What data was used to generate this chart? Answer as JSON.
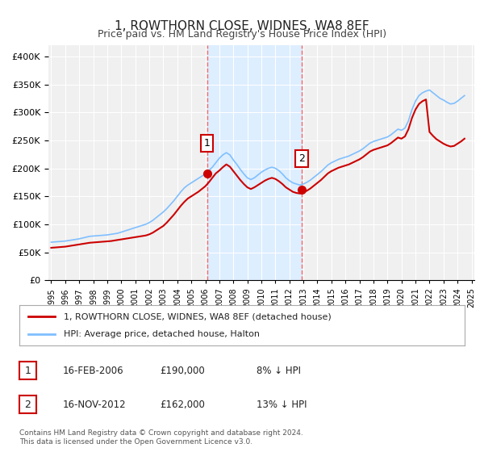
{
  "title": "1, ROWTHORN CLOSE, WIDNES, WA8 8EF",
  "subtitle": "Price paid vs. HM Land Registry's House Price Index (HPI)",
  "title_fontsize": 11,
  "subtitle_fontsize": 9,
  "background_color": "#ffffff",
  "plot_background_color": "#f0f0f0",
  "shaded_region_color": "#ddeeff",
  "hpi_line_color": "#7fbfff",
  "price_line_color": "#cc0000",
  "marker_color": "#cc0000",
  "vline_color": "#ff6666",
  "grid_color": "#ffffff",
  "ylim": [
    0,
    420000
  ],
  "ytick_step": 50000,
  "sale1_x": 2006.12,
  "sale1_y": 190000,
  "sale2_x": 2012.88,
  "sale2_y": 162000,
  "sale1_label": "1",
  "sale2_label": "2",
  "legend_line1": "1, ROWTHORN CLOSE, WIDNES, WA8 8EF (detached house)",
  "legend_line2": "HPI: Average price, detached house, Halton",
  "table_row1_num": "1",
  "table_row1_date": "16-FEB-2006",
  "table_row1_price": "£190,000",
  "table_row1_hpi": "8% ↓ HPI",
  "table_row2_num": "2",
  "table_row2_date": "16-NOV-2012",
  "table_row2_price": "£162,000",
  "table_row2_hpi": "13% ↓ HPI",
  "footer": "Contains HM Land Registry data © Crown copyright and database right 2024.\nThis data is licensed under the Open Government Licence v3.0.",
  "hpi_data_x": [
    1995,
    1995.25,
    1995.5,
    1995.75,
    1996,
    1996.25,
    1996.5,
    1996.75,
    1997,
    1997.25,
    1997.5,
    1997.75,
    1998,
    1998.25,
    1998.5,
    1998.75,
    1999,
    1999.25,
    1999.5,
    1999.75,
    2000,
    2000.25,
    2000.5,
    2000.75,
    2001,
    2001.25,
    2001.5,
    2001.75,
    2002,
    2002.25,
    2002.5,
    2002.75,
    2003,
    2003.25,
    2003.5,
    2003.75,
    2004,
    2004.25,
    2004.5,
    2004.75,
    2005,
    2005.25,
    2005.5,
    2005.75,
    2006,
    2006.25,
    2006.5,
    2006.75,
    2007,
    2007.25,
    2007.5,
    2007.75,
    2008,
    2008.25,
    2008.5,
    2008.75,
    2009,
    2009.25,
    2009.5,
    2009.75,
    2010,
    2010.25,
    2010.5,
    2010.75,
    2011,
    2011.25,
    2011.5,
    2011.75,
    2012,
    2012.25,
    2012.5,
    2012.75,
    2013,
    2013.25,
    2013.5,
    2013.75,
    2014,
    2014.25,
    2014.5,
    2014.75,
    2015,
    2015.25,
    2015.5,
    2015.75,
    2016,
    2016.25,
    2016.5,
    2016.75,
    2017,
    2017.25,
    2017.5,
    2017.75,
    2018,
    2018.25,
    2018.5,
    2018.75,
    2019,
    2019.25,
    2019.5,
    2019.75,
    2020,
    2020.25,
    2020.5,
    2020.75,
    2021,
    2021.25,
    2021.5,
    2021.75,
    2022,
    2022.25,
    2022.5,
    2022.75,
    2023,
    2023.25,
    2023.5,
    2023.75,
    2024,
    2024.25,
    2024.5
  ],
  "hpi_data_y": [
    68000,
    68500,
    69000,
    69500,
    70000,
    71000,
    72000,
    73000,
    74000,
    75500,
    77000,
    78500,
    79000,
    79500,
    80000,
    80500,
    81000,
    82000,
    83000,
    84000,
    86000,
    88000,
    90000,
    92000,
    94000,
    96000,
    98000,
    100000,
    103000,
    107000,
    112000,
    117000,
    122000,
    128000,
    135000,
    142000,
    150000,
    158000,
    165000,
    170000,
    174000,
    178000,
    182000,
    186000,
    190000,
    196000,
    202000,
    210000,
    218000,
    224000,
    228000,
    224000,
    215000,
    207000,
    198000,
    190000,
    183000,
    180000,
    183000,
    188000,
    193000,
    197000,
    200000,
    202000,
    200000,
    196000,
    190000,
    183000,
    178000,
    174000,
    172000,
    170000,
    172000,
    175000,
    179000,
    184000,
    189000,
    194000,
    200000,
    206000,
    210000,
    213000,
    216000,
    218000,
    220000,
    222000,
    225000,
    228000,
    231000,
    235000,
    240000,
    245000,
    248000,
    250000,
    252000,
    254000,
    256000,
    260000,
    265000,
    270000,
    268000,
    272000,
    285000,
    305000,
    320000,
    330000,
    335000,
    338000,
    340000,
    335000,
    330000,
    325000,
    322000,
    318000,
    315000,
    316000,
    320000,
    325000,
    330000
  ],
  "price_data_x": [
    1995,
    1995.25,
    1995.5,
    1995.75,
    1996,
    1996.25,
    1996.5,
    1996.75,
    1997,
    1997.25,
    1997.5,
    1997.75,
    1998,
    1998.25,
    1998.5,
    1998.75,
    1999,
    1999.25,
    1999.5,
    1999.75,
    2000,
    2000.25,
    2000.5,
    2000.75,
    2001,
    2001.25,
    2001.5,
    2001.75,
    2002,
    2002.25,
    2002.5,
    2002.75,
    2003,
    2003.25,
    2003.5,
    2003.75,
    2004,
    2004.25,
    2004.5,
    2004.75,
    2005,
    2005.25,
    2005.5,
    2005.75,
    2006,
    2006.25,
    2006.5,
    2006.75,
    2007,
    2007.25,
    2007.5,
    2007.75,
    2008,
    2008.25,
    2008.5,
    2008.75,
    2009,
    2009.25,
    2009.5,
    2009.75,
    2010,
    2010.25,
    2010.5,
    2010.75,
    2011,
    2011.25,
    2011.5,
    2011.75,
    2012,
    2012.25,
    2012.5,
    2012.75,
    2013,
    2013.25,
    2013.5,
    2013.75,
    2014,
    2014.25,
    2014.5,
    2014.75,
    2015,
    2015.25,
    2015.5,
    2015.75,
    2016,
    2016.25,
    2016.5,
    2016.75,
    2017,
    2017.25,
    2017.5,
    2017.75,
    2018,
    2018.25,
    2018.5,
    2018.75,
    2019,
    2019.25,
    2019.5,
    2019.75,
    2020,
    2020.25,
    2020.5,
    2020.75,
    2021,
    2021.25,
    2021.5,
    2021.75,
    2022,
    2022.25,
    2022.5,
    2022.75,
    2023,
    2023.25,
    2023.5,
    2023.75,
    2024,
    2024.25,
    2024.5
  ],
  "price_data_y": [
    58000,
    58500,
    59000,
    59500,
    60000,
    61000,
    62000,
    63000,
    64000,
    65000,
    66000,
    67000,
    67500,
    68000,
    68500,
    69000,
    69500,
    70000,
    71000,
    72000,
    73000,
    74000,
    75000,
    76000,
    77000,
    78000,
    79000,
    80000,
    82000,
    85000,
    89000,
    93000,
    97000,
    103000,
    110000,
    117000,
    125000,
    133000,
    140000,
    146000,
    150000,
    154000,
    158000,
    163000,
    168000,
    175000,
    183000,
    191000,
    196000,
    202000,
    207000,
    203000,
    195000,
    187000,
    179000,
    172000,
    166000,
    163000,
    166000,
    170000,
    174000,
    178000,
    181000,
    183000,
    181000,
    177000,
    172000,
    166000,
    162000,
    158000,
    156000,
    155000,
    157000,
    160000,
    164000,
    169000,
    174000,
    179000,
    185000,
    191000,
    195000,
    198000,
    201000,
    203000,
    205000,
    207000,
    210000,
    213000,
    216000,
    220000,
    225000,
    230000,
    233000,
    235000,
    237000,
    239000,
    241000,
    245000,
    250000,
    255000,
    253000,
    257000,
    270000,
    290000,
    305000,
    315000,
    320000,
    323000,
    265000,
    258000,
    252000,
    248000,
    244000,
    241000,
    239000,
    240000,
    244000,
    248000,
    253000
  ],
  "xticks": [
    1995,
    1996,
    1997,
    1998,
    1999,
    2000,
    2001,
    2002,
    2003,
    2004,
    2005,
    2006,
    2007,
    2008,
    2009,
    2010,
    2011,
    2012,
    2013,
    2014,
    2015,
    2016,
    2017,
    2018,
    2019,
    2020,
    2021,
    2022,
    2023,
    2024,
    2025
  ],
  "xlim": [
    1994.8,
    2025.2
  ]
}
